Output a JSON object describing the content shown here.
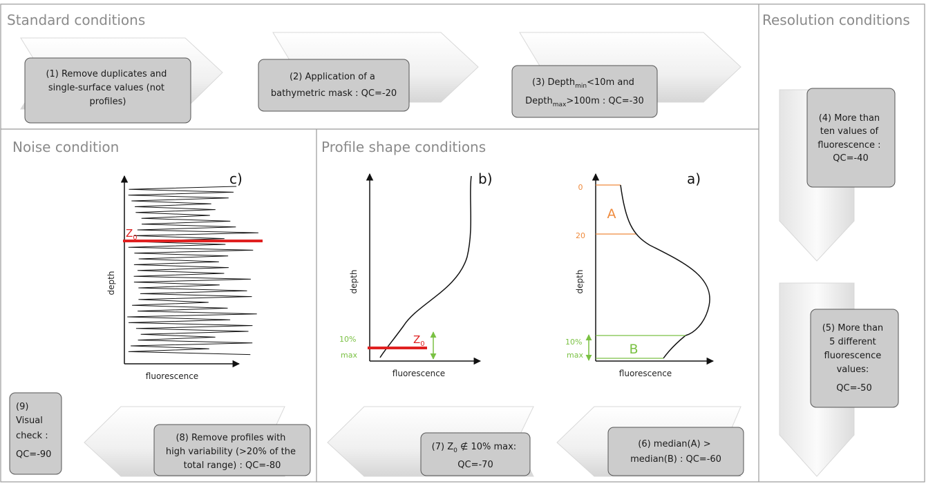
{
  "sections": {
    "standard": "Standard conditions",
    "resolution": "Resolution conditions",
    "noise": "Noise condition",
    "profile": "Profile shape conditions"
  },
  "steps": {
    "s1": [
      "(1) Remove duplicates and",
      "single-surface values (not",
      "profiles)"
    ],
    "s2": [
      "(2) Application of a",
      "bathymetric mask : QC=-20"
    ],
    "s3": {
      "l1_a": "(3) Depth",
      "l1_sub": "min",
      "l1_b": "<10m and",
      "l2_a": "Depth",
      "l2_sub": "max",
      "l2_b": ">100m : QC=-30"
    },
    "s4": [
      "(4) More than",
      "ten values of",
      "fluorescence :",
      "QC=-40"
    ],
    "s5": [
      "(5) More than",
      "5 different",
      "fluorescence",
      "values:",
      "QC=-50"
    ],
    "s6": [
      "(6) median(A) >",
      "median(B) : QC=-60"
    ],
    "s7": {
      "l1_a": "(7) Z",
      "l1_sub": "0",
      "l1_b": " ∉ 10% max:",
      "l2": "QC=-70"
    },
    "s8": [
      "(8) Remove profiles with",
      "high variability (>20% of the",
      "total range) : QC=-80"
    ],
    "s9": [
      "(9)",
      "Visual",
      "check :",
      "QC=-90"
    ]
  },
  "plots": {
    "c": {
      "panel": "c)",
      "xlabel": "fluorescence",
      "ylabel": "depth",
      "z0_main": "Z",
      "z0_sub": "0"
    },
    "b": {
      "panel": "b)",
      "xlabel": "fluorescence",
      "ylabel": "depth",
      "pct": [
        "10%",
        "max"
      ],
      "z0_main": "Z",
      "z0_sub": "0"
    },
    "a": {
      "panel": "a)",
      "xlabel": "fluorescence",
      "ylabel": "depth",
      "tick0": "0",
      "tick20": "20",
      "pct": [
        "10%",
        "max"
      ],
      "regionA": "A",
      "regionB": "B"
    }
  },
  "colors": {
    "red": "#e02020",
    "orange": "#ef8a3c",
    "green": "#7ac143",
    "box": "#cccccc"
  }
}
